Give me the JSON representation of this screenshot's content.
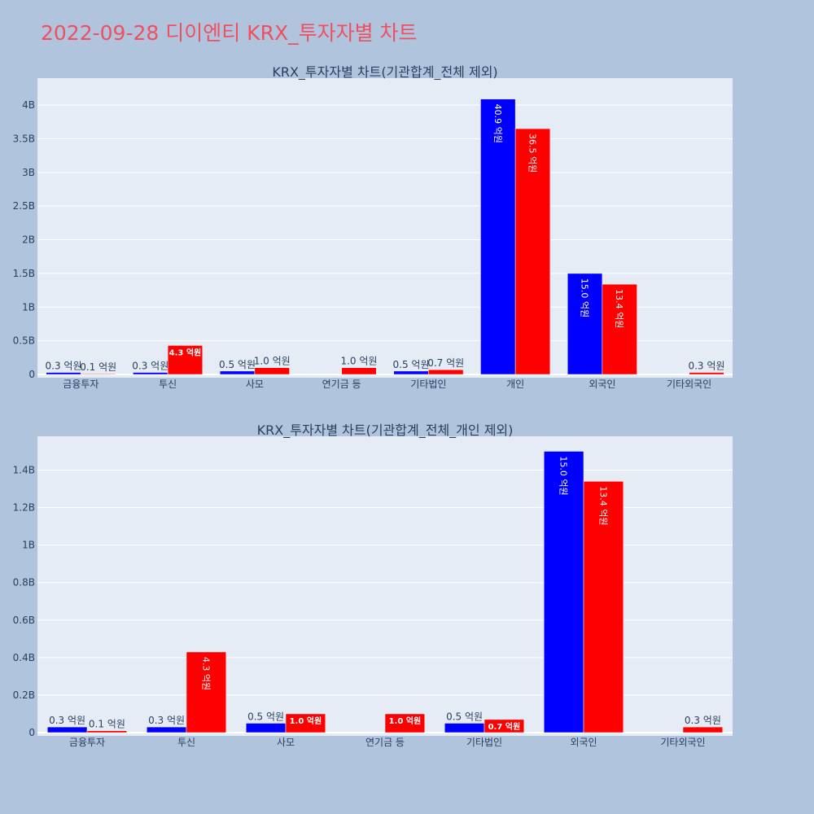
{
  "page_title": "2022-09-28 디이엔티 KRX_투자자별 차트",
  "colors": {
    "buy": "#0000ff",
    "sell": "#ff0000",
    "plot_bg": "#e5ecf6",
    "page_bg": "#b0c4de",
    "title": "#ef4f5f"
  },
  "chart_data": [
    {
      "type": "bar",
      "title": "KRX_투자자별 차트(기관합계_전체 제외)",
      "categories": [
        "금융투자",
        "투신",
        "사모",
        "연기금 등",
        "기타법인",
        "개인",
        "외국인",
        "기타외국인"
      ],
      "ylim": [
        0,
        4.4
      ],
      "ytick_values": [
        0,
        0.5,
        1,
        1.5,
        2,
        2.5,
        3,
        3.5,
        4
      ],
      "ytick_labels": [
        "0",
        "0.5B",
        "1B",
        "1.5B",
        "2B",
        "2.5B",
        "3B",
        "3.5B",
        "4B"
      ],
      "series": [
        {
          "values": [
            0.03,
            0.03,
            0.05,
            0,
            0.05,
            4.09,
            1.5,
            0
          ],
          "labels": [
            "0.3 억원",
            "0.3 억원",
            "0.5 억원",
            "",
            "0.5 억원",
            "40.9 억원",
            "15.0 억원",
            ""
          ]
        },
        {
          "values": [
            0.01,
            0.43,
            0.1,
            0.1,
            0.07,
            3.65,
            1.34,
            0.03
          ],
          "labels": [
            "0.1 억원",
            "4.3 억원",
            "1.0 억원",
            "1.0 억원",
            "0.7 억원",
            "36.5 억원",
            "13.4 억원",
            "0.3 억원"
          ]
        }
      ]
    },
    {
      "type": "bar",
      "title": "KRX_투자자별 차트(기관합계_전체_개인 제외)",
      "categories": [
        "금융투자",
        "투신",
        "사모",
        "연기금 등",
        "기타법인",
        "외국인",
        "기타외국인"
      ],
      "ylim": [
        0,
        1.58
      ],
      "ytick_values": [
        0,
        0.2,
        0.4,
        0.6,
        0.8,
        1,
        1.2,
        1.4
      ],
      "ytick_labels": [
        "0",
        "0.2B",
        "0.4B",
        "0.6B",
        "0.8B",
        "1B",
        "1.2B",
        "1.4B"
      ],
      "series": [
        {
          "values": [
            0.03,
            0.03,
            0.05,
            0,
            0.05,
            1.5,
            0
          ],
          "labels": [
            "0.3 억원",
            "0.3 억원",
            "0.5 억원",
            "",
            "0.5 억원",
            "15.0 억원",
            ""
          ]
        },
        {
          "values": [
            0.01,
            0.43,
            0.1,
            0.1,
            0.07,
            1.34,
            0.03
          ],
          "labels": [
            "0.1 억원",
            "4.3 억원",
            "1.0 억원",
            "1.0 억원",
            "0.7 억원",
            "13.4 억원",
            "0.3 억원"
          ]
        }
      ]
    }
  ]
}
